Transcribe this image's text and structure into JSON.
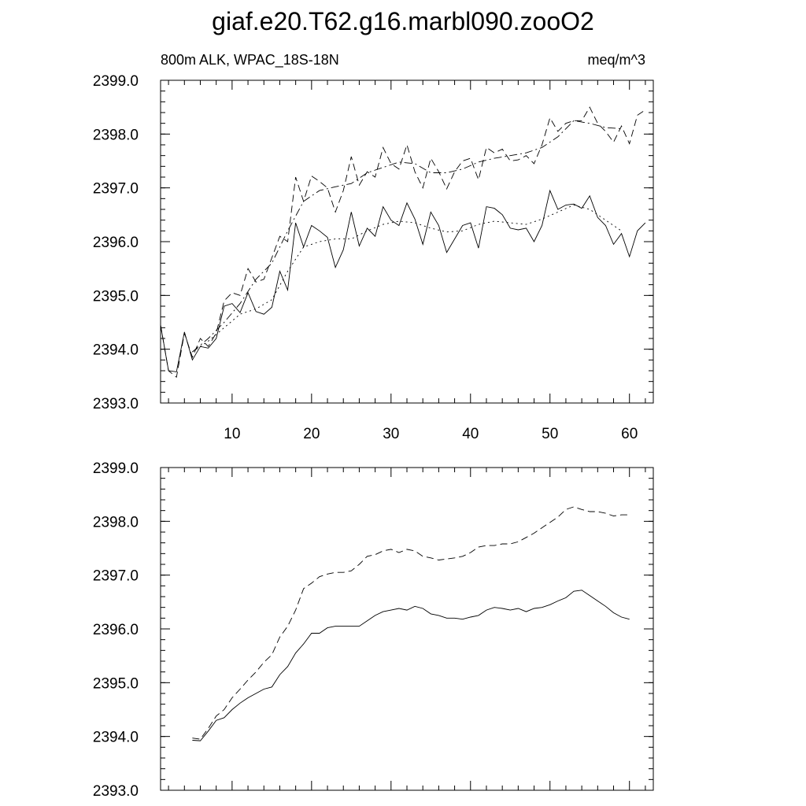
{
  "title": "giaf.e20.T62.g16.marbl090.zooO2",
  "chart_data": [
    {
      "type": "line",
      "subtitle_left": "800m ALK, WPAC_18S-18N",
      "subtitle_right": "meq/m^3",
      "xlim": [
        1,
        63
      ],
      "ylim": [
        2393.0,
        2399.0
      ],
      "xticks": [
        10,
        20,
        30,
        40,
        50,
        60
      ],
      "yticks": [
        2393.0,
        2394.0,
        2395.0,
        2396.0,
        2397.0,
        2398.0,
        2399.0
      ],
      "ytick_labels": [
        "2393.0",
        "2394.0",
        "2395.0",
        "2396.0",
        "2397.0",
        "2398.0",
        "2399.0"
      ],
      "xtick_labels": [
        "10",
        "20",
        "30",
        "40",
        "50",
        "60"
      ],
      "series": [
        {
          "style": "dashed",
          "x": [
            1,
            2,
            3,
            4,
            5,
            6,
            7,
            8,
            9,
            10,
            11,
            12,
            13,
            14,
            15,
            16,
            17,
            18,
            19,
            20,
            21,
            22,
            23,
            24,
            25,
            26,
            27,
            28,
            29,
            30,
            31,
            32,
            33,
            34,
            35,
            36,
            37,
            38,
            39,
            40,
            41,
            42,
            43,
            44,
            45,
            46,
            47,
            48,
            49,
            50,
            51,
            52,
            53,
            54,
            55,
            56,
            57,
            58,
            59,
            60,
            61,
            62
          ],
          "values": [
            2394.45,
            2393.6,
            2393.48,
            2394.3,
            2393.85,
            2394.2,
            2394.05,
            2394.3,
            2394.9,
            2395.05,
            2395.0,
            2395.5,
            2395.25,
            2395.3,
            2395.7,
            2396.1,
            2396.0,
            2397.2,
            2396.75,
            2397.22,
            2397.12,
            2397.0,
            2396.55,
            2396.95,
            2397.58,
            2397.05,
            2397.3,
            2397.2,
            2397.75,
            2397.45,
            2397.35,
            2397.8,
            2397.3,
            2397.0,
            2397.55,
            2397.3,
            2396.98,
            2397.3,
            2397.5,
            2397.55,
            2397.15,
            2397.75,
            2397.65,
            2397.72,
            2397.5,
            2397.52,
            2397.6,
            2397.45,
            2397.8,
            2398.3,
            2398.05,
            2398.2,
            2398.25,
            2398.25,
            2398.5,
            2398.2,
            2398.05,
            2397.85,
            2398.15,
            2397.82,
            2398.35,
            2398.45
          ]
        },
        {
          "style": "solid",
          "x": [
            1,
            2,
            3,
            4,
            5,
            6,
            7,
            8,
            9,
            10,
            11,
            12,
            13,
            14,
            15,
            16,
            17,
            18,
            19,
            20,
            21,
            22,
            23,
            24,
            25,
            26,
            27,
            28,
            29,
            30,
            31,
            32,
            33,
            34,
            35,
            36,
            37,
            38,
            39,
            40,
            41,
            42,
            43,
            44,
            45,
            46,
            47,
            48,
            49,
            50,
            51,
            52,
            53,
            54,
            55,
            56,
            57,
            58,
            59,
            60,
            61,
            62
          ],
          "values": [
            2394.45,
            2393.6,
            2393.58,
            2394.32,
            2393.8,
            2394.05,
            2394.02,
            2394.2,
            2394.8,
            2394.85,
            2394.68,
            2395.05,
            2394.7,
            2394.65,
            2394.78,
            2395.45,
            2395.1,
            2396.35,
            2395.9,
            2396.3,
            2396.2,
            2396.08,
            2395.52,
            2395.85,
            2396.55,
            2395.92,
            2396.25,
            2396.1,
            2396.65,
            2396.4,
            2396.3,
            2396.72,
            2396.42,
            2395.95,
            2396.55,
            2396.3,
            2395.8,
            2396.05,
            2396.3,
            2396.35,
            2395.88,
            2396.65,
            2396.62,
            2396.5,
            2396.25,
            2396.22,
            2396.25,
            2396.0,
            2396.3,
            2396.95,
            2396.6,
            2396.68,
            2396.7,
            2396.62,
            2396.85,
            2396.45,
            2396.3,
            2395.95,
            2396.15,
            2395.72,
            2396.2,
            2396.35
          ]
        },
        {
          "style": "dash-dot",
          "x": [
            5,
            7,
            9,
            11,
            13,
            15,
            17,
            19,
            21,
            23,
            25,
            27,
            29,
            31,
            33,
            35,
            37,
            39,
            41,
            43,
            45,
            47,
            49,
            51,
            53,
            55,
            57,
            59
          ],
          "values": [
            2393.95,
            2394.2,
            2394.5,
            2394.85,
            2395.3,
            2395.6,
            2396.2,
            2396.75,
            2396.95,
            2397.02,
            2397.08,
            2397.28,
            2397.38,
            2397.48,
            2397.45,
            2397.28,
            2397.28,
            2397.35,
            2397.48,
            2397.55,
            2397.6,
            2397.65,
            2397.75,
            2397.95,
            2398.25,
            2398.2,
            2398.12,
            2398.1
          ]
        },
        {
          "style": "dotted",
          "x": [
            5,
            7,
            9,
            11,
            13,
            15,
            17,
            19,
            21,
            23,
            25,
            27,
            29,
            31,
            33,
            35,
            37,
            39,
            41,
            43,
            45,
            47,
            49,
            51,
            53,
            55,
            57,
            59
          ],
          "values": [
            2393.95,
            2394.15,
            2394.4,
            2394.65,
            2394.75,
            2394.92,
            2395.45,
            2395.9,
            2396.0,
            2396.05,
            2396.05,
            2396.2,
            2396.32,
            2396.38,
            2396.35,
            2396.25,
            2396.18,
            2396.2,
            2396.32,
            2396.38,
            2396.35,
            2396.32,
            2396.42,
            2396.55,
            2396.68,
            2396.6,
            2396.4,
            2396.2
          ]
        }
      ]
    },
    {
      "type": "line",
      "xlim": [
        1,
        63
      ],
      "ylim": [
        2393.0,
        2399.0
      ],
      "xticks": [
        10,
        20,
        30,
        40,
        50,
        60
      ],
      "yticks": [
        2393.0,
        2394.0,
        2395.0,
        2396.0,
        2397.0,
        2398.0,
        2399.0
      ],
      "ytick_labels": [
        "2393.0",
        "2394.0",
        "2395.0",
        "2396.0",
        "2397.0",
        "2398.0",
        "2399.0"
      ],
      "series": [
        {
          "style": "dashed",
          "x": [
            5,
            6,
            7,
            8,
            9,
            10,
            11,
            12,
            13,
            14,
            15,
            16,
            17,
            18,
            19,
            20,
            21,
            22,
            23,
            24,
            25,
            26,
            27,
            28,
            29,
            30,
            31,
            32,
            33,
            34,
            35,
            36,
            37,
            38,
            39,
            40,
            41,
            42,
            43,
            44,
            45,
            46,
            47,
            48,
            49,
            50,
            51,
            52,
            53,
            54,
            55,
            56,
            57,
            58,
            59,
            60
          ],
          "values": [
            2393.97,
            2393.95,
            2394.15,
            2394.38,
            2394.5,
            2394.72,
            2394.88,
            2395.05,
            2395.2,
            2395.38,
            2395.52,
            2395.85,
            2396.05,
            2396.35,
            2396.75,
            2396.85,
            2396.97,
            2397.02,
            2397.05,
            2397.05,
            2397.08,
            2397.2,
            2397.35,
            2397.38,
            2397.45,
            2397.48,
            2397.42,
            2397.48,
            2397.45,
            2397.35,
            2397.32,
            2397.28,
            2397.3,
            2397.32,
            2397.35,
            2397.42,
            2397.52,
            2397.55,
            2397.55,
            2397.58,
            2397.58,
            2397.62,
            2397.7,
            2397.78,
            2397.88,
            2397.98,
            2398.08,
            2398.22,
            2398.27,
            2398.22,
            2398.18,
            2398.18,
            2398.15,
            2398.1,
            2398.12,
            2398.12
          ]
        },
        {
          "style": "solid",
          "x": [
            5,
            6,
            7,
            8,
            9,
            10,
            11,
            12,
            13,
            14,
            15,
            16,
            17,
            18,
            19,
            20,
            21,
            22,
            23,
            24,
            25,
            26,
            27,
            28,
            29,
            30,
            31,
            32,
            33,
            34,
            35,
            36,
            37,
            38,
            39,
            40,
            41,
            42,
            43,
            44,
            45,
            46,
            47,
            48,
            49,
            50,
            51,
            52,
            53,
            54,
            55,
            56,
            57,
            58,
            59,
            60
          ],
          "values": [
            2393.93,
            2393.92,
            2394.1,
            2394.3,
            2394.35,
            2394.5,
            2394.62,
            2394.72,
            2394.8,
            2394.88,
            2394.92,
            2395.15,
            2395.3,
            2395.55,
            2395.72,
            2395.92,
            2395.92,
            2396.02,
            2396.05,
            2396.05,
            2396.05,
            2396.05,
            2396.15,
            2396.25,
            2396.32,
            2396.35,
            2396.38,
            2396.35,
            2396.42,
            2396.38,
            2396.28,
            2396.25,
            2396.2,
            2396.2,
            2396.18,
            2396.22,
            2396.25,
            2396.35,
            2396.4,
            2396.38,
            2396.35,
            2396.38,
            2396.32,
            2396.38,
            2396.4,
            2396.45,
            2396.52,
            2396.58,
            2396.7,
            2396.72,
            2396.62,
            2396.52,
            2396.42,
            2396.3,
            2396.22,
            2396.18
          ]
        }
      ]
    }
  ]
}
